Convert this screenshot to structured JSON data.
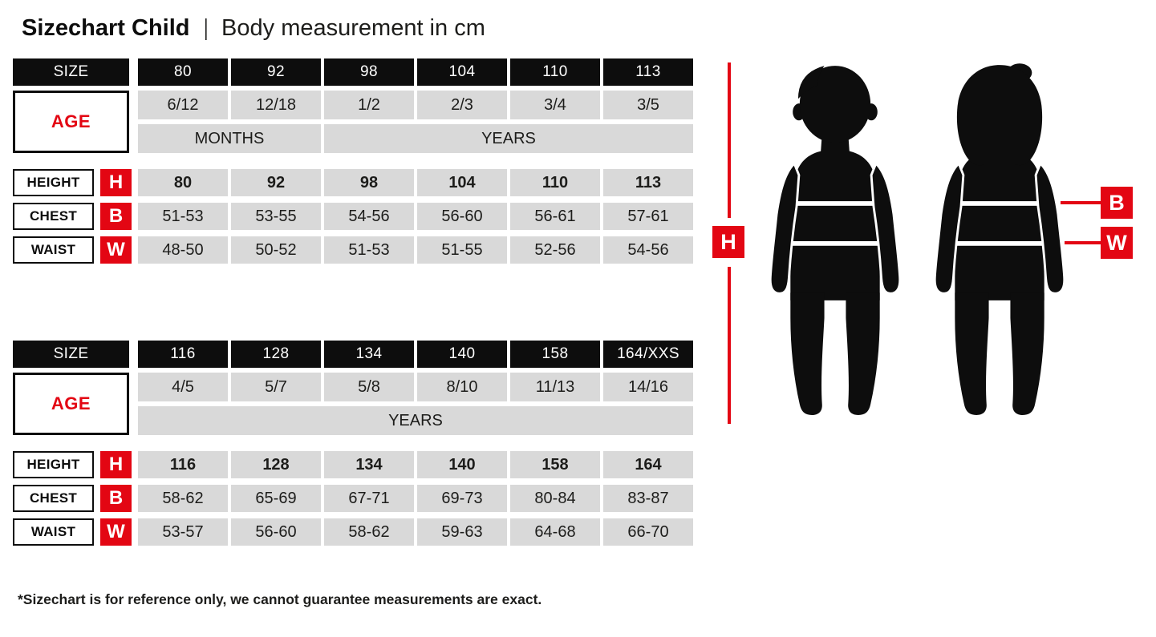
{
  "page": {
    "title_main": "Sizechart Child",
    "title_separator": "|",
    "title_sub": "Body measurement in cm",
    "footnote": "*Sizechart is for reference only, we cannot guarantee measurements are exact."
  },
  "colors": {
    "red": "#e30613",
    "ink": "#0d0d0d",
    "cell_gray": "#d9d9d9"
  },
  "tables": [
    {
      "size_label": "SIZE",
      "age_label": "AGE",
      "sizes": [
        "80",
        "92",
        "98",
        "104",
        "110",
        "113"
      ],
      "ages": [
        "6/12",
        "12/18",
        "1/2",
        "2/3",
        "3/4",
        "3/5"
      ],
      "age_units": [
        {
          "label": "MONTHS",
          "start": 0,
          "end": 1
        },
        {
          "label": "YEARS",
          "start": 2,
          "end": 5
        }
      ],
      "measurement_rows": [
        {
          "label": "HEIGHT",
          "letter": "H",
          "bold": true,
          "values": [
            "80",
            "92",
            "98",
            "104",
            "110",
            "113"
          ]
        },
        {
          "label": "CHEST",
          "letter": "B",
          "bold": false,
          "values": [
            "51-53",
            "53-55",
            "54-56",
            "56-60",
            "56-61",
            "57-61"
          ]
        },
        {
          "label": "WAIST",
          "letter": "W",
          "bold": false,
          "values": [
            "48-50",
            "50-52",
            "51-53",
            "51-55",
            "52-56",
            "54-56"
          ]
        }
      ]
    },
    {
      "size_label": "SIZE",
      "age_label": "AGE",
      "sizes": [
        "116",
        "128",
        "134",
        "140",
        "158",
        "164/XXS"
      ],
      "ages": [
        "4/5",
        "5/7",
        "5/8",
        "8/10",
        "11/13",
        "14/16"
      ],
      "age_units": [
        {
          "label": "YEARS",
          "start": 0,
          "end": 5
        }
      ],
      "measurement_rows": [
        {
          "label": "HEIGHT",
          "letter": "H",
          "bold": true,
          "values": [
            "116",
            "128",
            "134",
            "140",
            "158",
            "164"
          ]
        },
        {
          "label": "CHEST",
          "letter": "B",
          "bold": false,
          "values": [
            "58-62",
            "65-69",
            "67-71",
            "69-73",
            "80-84",
            "83-87"
          ]
        },
        {
          "label": "WAIST",
          "letter": "W",
          "bold": false,
          "values": [
            "53-57",
            "56-60",
            "58-62",
            "59-63",
            "64-68",
            "66-70"
          ]
        }
      ]
    }
  ],
  "diagram": {
    "height_marker": "H",
    "chest_marker": "B",
    "waist_marker": "W"
  }
}
